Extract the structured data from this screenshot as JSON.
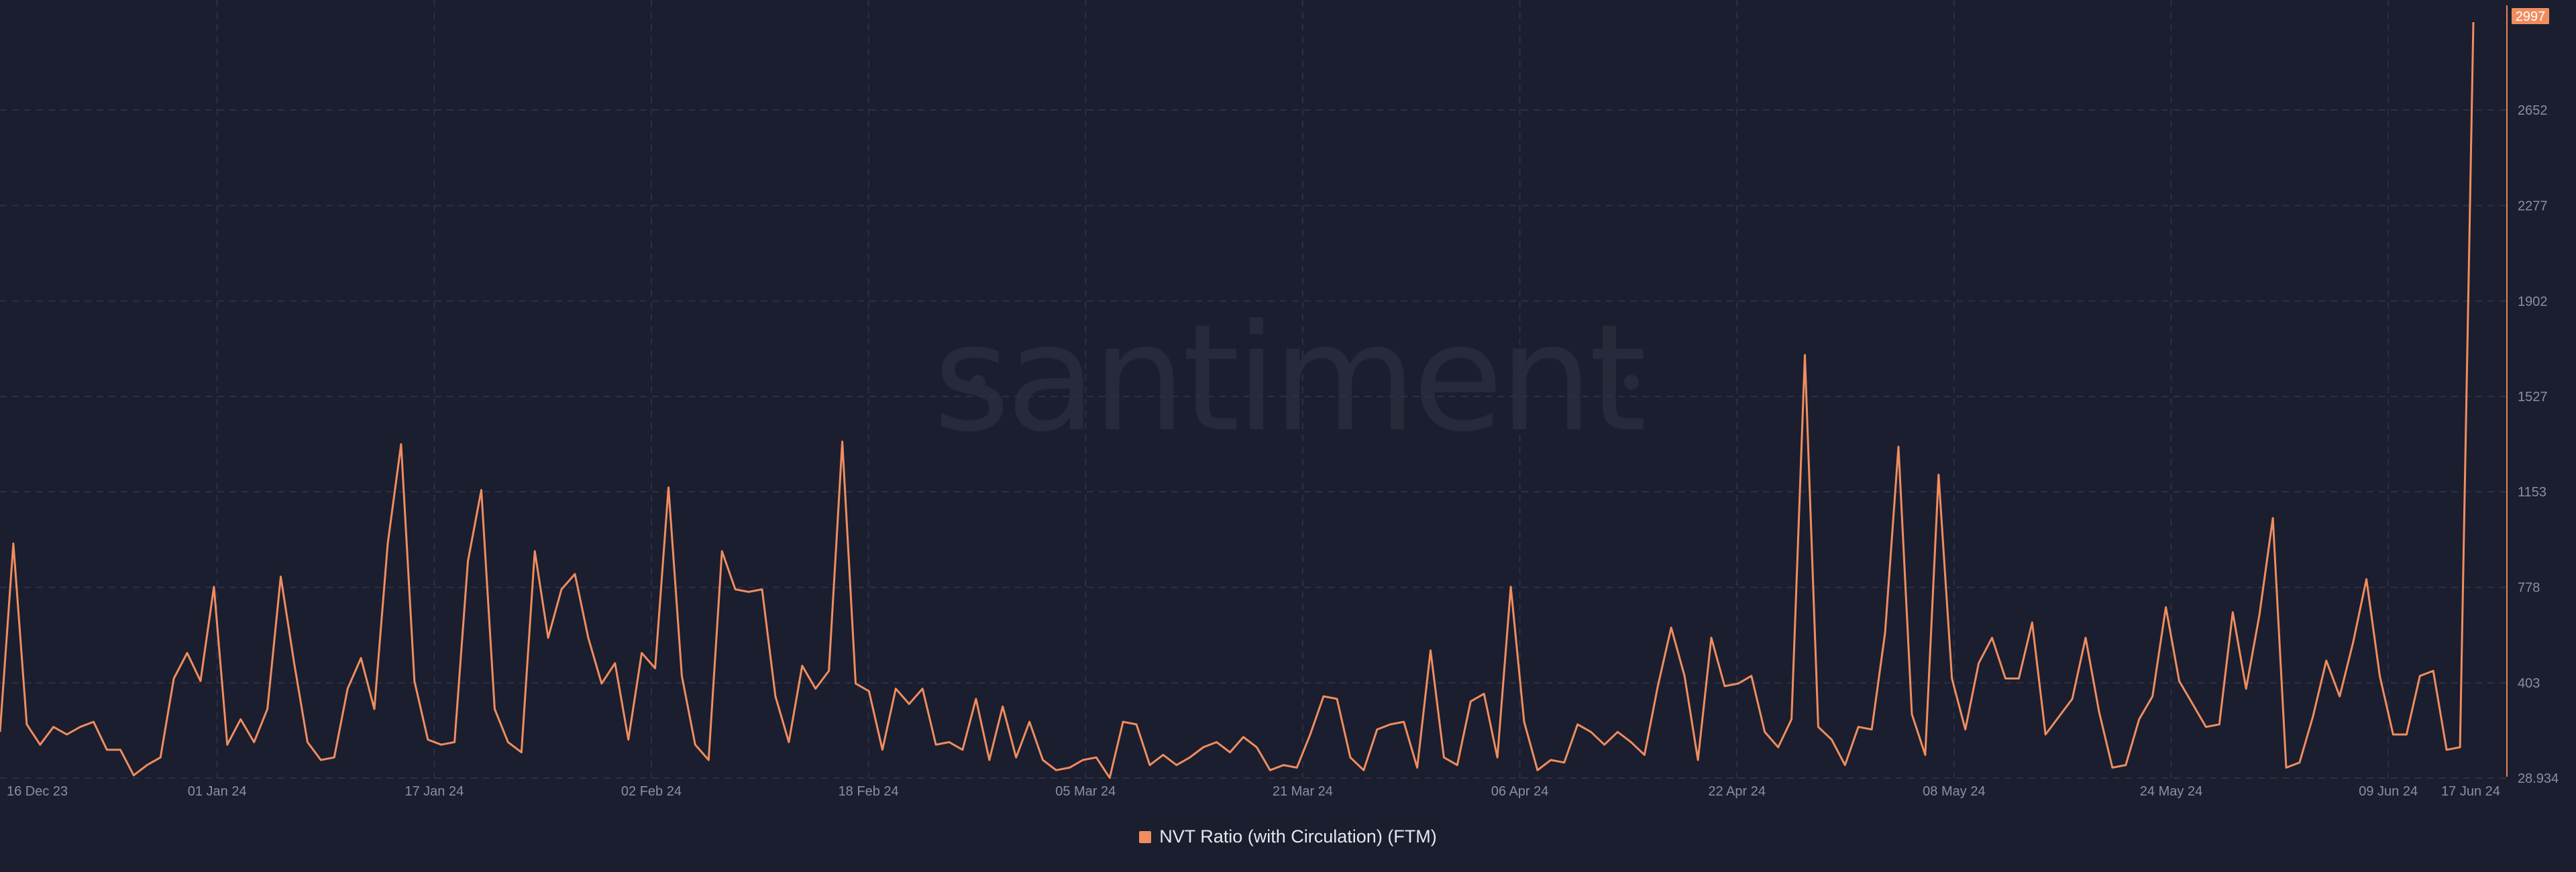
{
  "watermark": "santiment",
  "colors": {
    "background": "#1b1e2e",
    "series": "#f08d5f",
    "grid": "#2c3044",
    "tick_text": "#8a8fa3",
    "legend_text": "#e6e8ef"
  },
  "chart_data": {
    "type": "line",
    "title": "",
    "xlabel": "",
    "ylabel": "",
    "ylim": [
      28.934,
      3026
    ],
    "y_axis_position": "right",
    "grid": true,
    "legend_position": "bottom-center",
    "y_ticks": [
      "2997",
      "2652",
      "2277",
      "1902",
      "1527",
      "1153",
      "778",
      "403",
      "28.934"
    ],
    "x_ticks": [
      "16 Dec 23",
      "01 Jan 24",
      "17 Jan 24",
      "02 Feb 24",
      "18 Feb 24",
      "05 Mar 24",
      "21 Mar 24",
      "06 Apr 24",
      "22 Apr 24",
      "08 May 24",
      "24 May 24",
      "09 Jun 24",
      "17 Jun 24"
    ],
    "last_value_badge": "2997",
    "series": [
      {
        "name": "NVT Ratio (with Circulation) (FTM)",
        "color": "#f08d5f",
        "x_start": "2023-12-16",
        "x_end": "2024-06-17",
        "values": [
          210,
          950,
          240,
          160,
          230,
          200,
          230,
          250,
          140,
          140,
          40,
          80,
          110,
          420,
          520,
          410,
          780,
          160,
          260,
          170,
          300,
          820,
          480,
          170,
          100,
          110,
          380,
          500,
          300,
          950,
          1340,
          410,
          180,
          160,
          170,
          880,
          1160,
          300,
          170,
          130,
          920,
          580,
          770,
          830,
          580,
          400,
          480,
          180,
          520,
          460,
          1170,
          430,
          160,
          100,
          920,
          770,
          760,
          770,
          350,
          170,
          470,
          380,
          450,
          1350,
          400,
          370,
          140,
          380,
          320,
          380,
          160,
          170,
          140,
          340,
          100,
          310,
          110,
          250,
          100,
          60,
          70,
          100,
          110,
          30,
          250,
          240,
          80,
          120,
          80,
          110,
          150,
          170,
          130,
          190,
          150,
          60,
          80,
          70,
          200,
          350,
          340,
          110,
          60,
          220,
          240,
          250,
          70,
          530,
          110,
          80,
          330,
          360,
          110,
          780,
          250,
          60,
          100,
          90,
          240,
          210,
          160,
          210,
          170,
          120,
          390,
          620,
          430,
          100,
          580,
          390,
          400,
          430,
          210,
          150,
          260,
          1690,
          230,
          180,
          80,
          230,
          220,
          600,
          1330,
          280,
          120,
          1220,
          420,
          220,
          480,
          580,
          420,
          420,
          640,
          200,
          270,
          340,
          580,
          290,
          70,
          80,
          260,
          350,
          700,
          410,
          320,
          230,
          240,
          680,
          380,
          670,
          1050,
          70,
          90,
          270,
          490,
          350,
          560,
          810,
          430,
          200,
          200,
          430,
          450,
          140,
          150,
          2997
        ]
      }
    ]
  }
}
